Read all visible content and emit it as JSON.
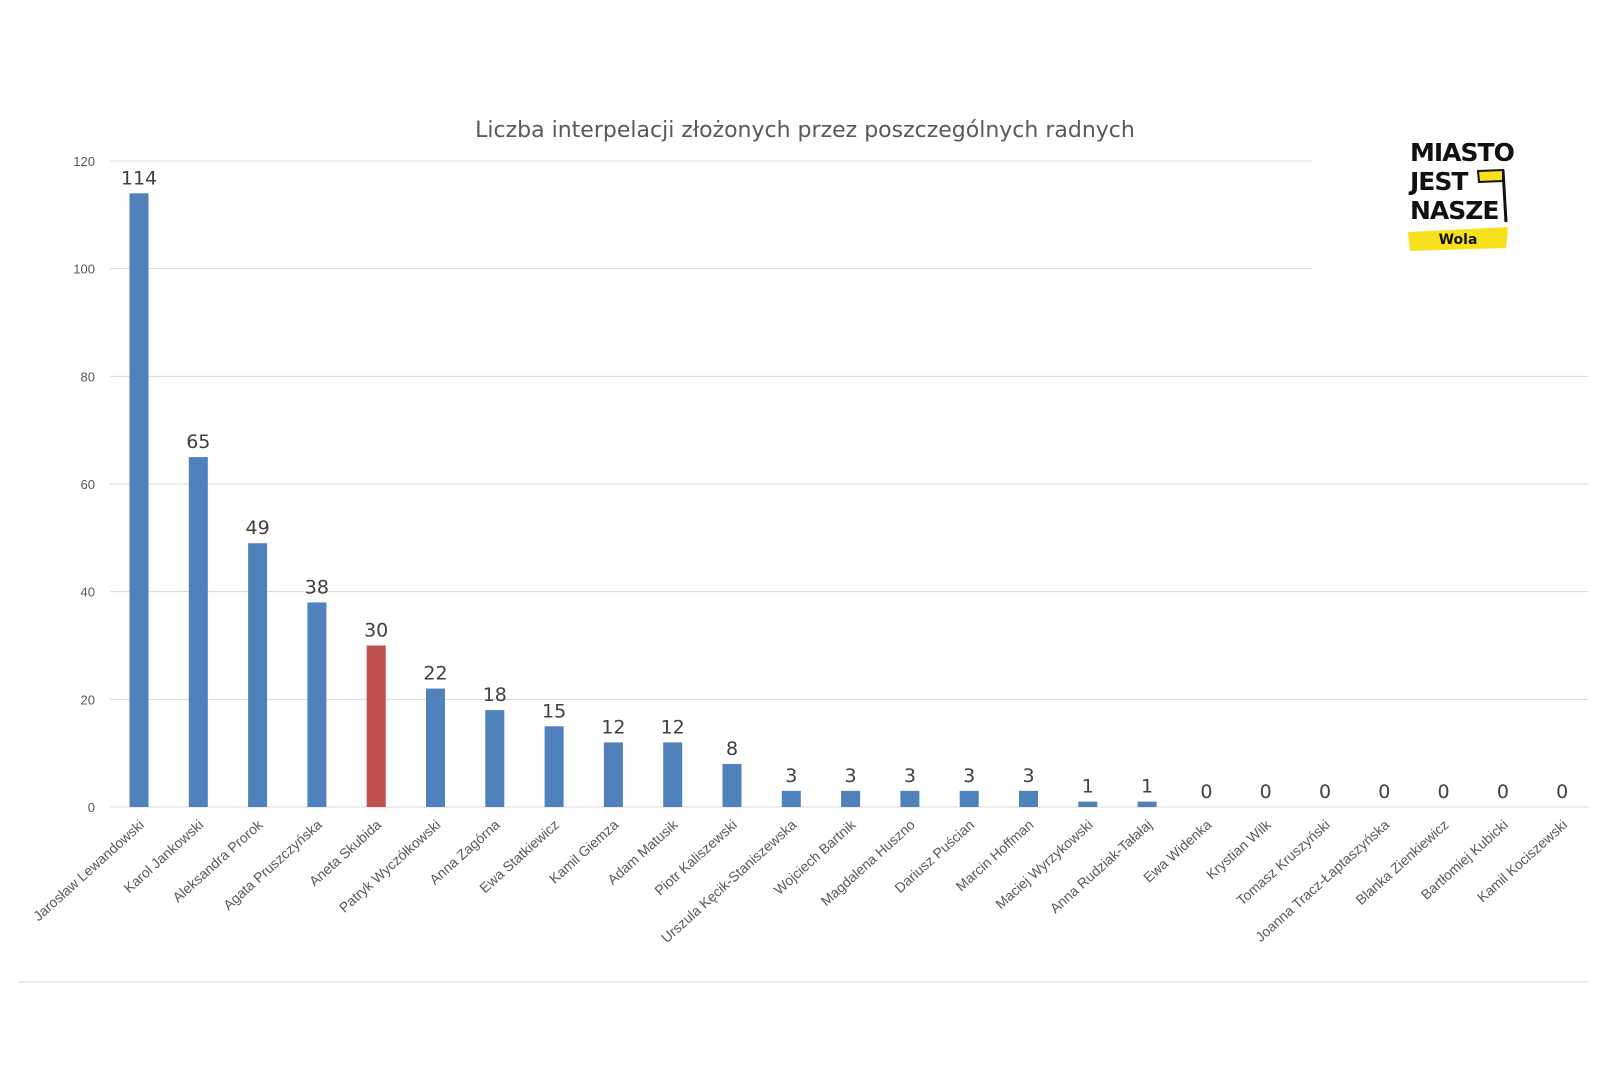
{
  "chart_data": {
    "type": "bar",
    "title": "Liczba interpelacji złożonych przez poszczególnych radnych",
    "xlabel": "",
    "ylabel": "",
    "ylim": [
      0,
      120
    ],
    "yticks": [
      0,
      20,
      40,
      60,
      80,
      100,
      120
    ],
    "grid": true,
    "legend": "none",
    "colors": {
      "default": "#4f81bd",
      "highlight": "#c0504d"
    },
    "highlight_index": 4,
    "categories": [
      "Jarosław Lewandowski",
      "Karol Jankowski",
      "Aleksandra Prorok",
      "Agata Pruszczyńska",
      "Aneta Skubida",
      "Patryk Wyczółkowski",
      "Anna Zagórna",
      "Ewa Statkiewicz",
      "Kamil Giemza",
      "Adam Matusik",
      "Piotr Kaliszewski",
      "Urszula Kęcik-Staniszewska",
      "Wojciech Bartnik",
      "Magdalena Huszno",
      "Dariusz Puścian",
      "Marcin Hoffman",
      "Maciej Wyrzykowski",
      "Anna Rudziak-Tałałaj",
      "Ewa Widenka",
      "Krystian Wilk",
      "Tomasz Kruszyński",
      "Joanna Tracz-Łaptaszyńska",
      "Blanka Zienkiewicz",
      "Bartłomiej Kubicki",
      "Kamil Kociszewski"
    ],
    "values": [
      114,
      65,
      49,
      38,
      30,
      22,
      18,
      15,
      12,
      12,
      8,
      3,
      3,
      3,
      3,
      3,
      1,
      1,
      0,
      0,
      0,
      0,
      0,
      0,
      0
    ]
  },
  "logo": {
    "line1": "MIASTO",
    "line2": "JEST",
    "line3": "NASZE",
    "sub": "Wola",
    "accent": "#f7e11c",
    "icon": "flag-icon"
  }
}
